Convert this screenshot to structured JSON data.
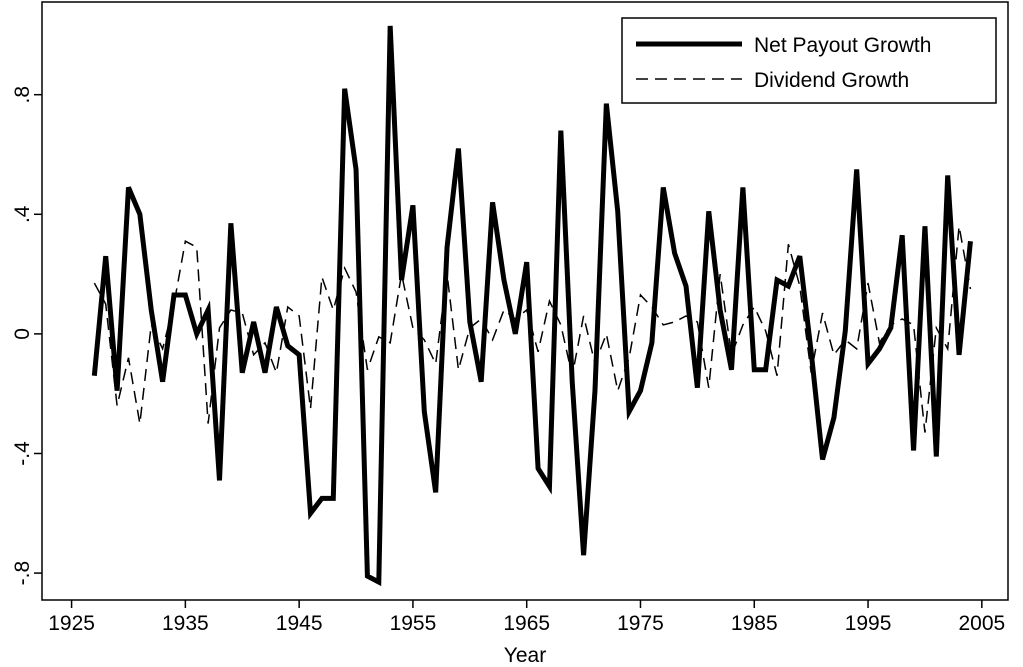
{
  "chart_data": {
    "type": "line",
    "xlabel": "Year",
    "x": [
      1927,
      1928,
      1929,
      1930,
      1931,
      1932,
      1933,
      1934,
      1935,
      1936,
      1937,
      1938,
      1939,
      1940,
      1941,
      1942,
      1943,
      1944,
      1945,
      1946,
      1947,
      1948,
      1949,
      1950,
      1951,
      1952,
      1953,
      1954,
      1955,
      1956,
      1957,
      1958,
      1959,
      1960,
      1961,
      1962,
      1963,
      1964,
      1965,
      1966,
      1967,
      1968,
      1969,
      1970,
      1971,
      1972,
      1973,
      1974,
      1975,
      1976,
      1977,
      1978,
      1979,
      1980,
      1981,
      1982,
      1983,
      1984,
      1985,
      1986,
      1987,
      1988,
      1989,
      1990,
      1991,
      1992,
      1993,
      1994,
      1995,
      1996,
      1997,
      1998,
      1999,
      2000,
      2001,
      2002,
      2003,
      2004
    ],
    "series": [
      {
        "name": "Net Payout Growth",
        "color": "#000000",
        "line_style": "solid",
        "line_width": 5,
        "values": [
          -0.14,
          0.26,
          -0.19,
          0.49,
          0.4,
          0.08,
          -0.16,
          0.13,
          0.13,
          0,
          0.08,
          -0.49,
          0.37,
          -0.13,
          0.04,
          -0.13,
          0.09,
          -0.04,
          -0.07,
          -0.6,
          -0.55,
          -0.55,
          0.82,
          0.55,
          -0.81,
          -0.83,
          1.03,
          0.18,
          0.43,
          -0.26,
          -0.53,
          0.29,
          0.62,
          0.04,
          -0.16,
          0.44,
          0.18,
          0,
          0.24,
          -0.45,
          -0.51,
          0.68,
          -0.16,
          -0.74,
          -0.19,
          0.77,
          0.41,
          -0.26,
          -0.19,
          -0.03,
          0.49,
          0.27,
          0.16,
          -0.18,
          0.41,
          0.08,
          -0.12,
          0.49,
          -0.12,
          -0.12,
          0.18,
          0.16,
          0.26,
          -0.06,
          -0.42,
          -0.28,
          0.01,
          0.55,
          -0.1,
          -0.05,
          0.02,
          0.33,
          -0.39,
          0.36,
          -0.41,
          0.53,
          -0.07,
          0.31
        ]
      },
      {
        "name": "Dividend Growth",
        "color": "#000000",
        "line_style": "dashed",
        "line_width": 1.5,
        "values": [
          0.17,
          0.1,
          -0.24,
          -0.08,
          -0.3,
          0.03,
          -0.05,
          0.1,
          0.31,
          0.29,
          -0.3,
          0.02,
          0.08,
          0.07,
          -0.07,
          -0.03,
          -0.13,
          0.09,
          0.06,
          -0.25,
          0.19,
          0.08,
          0.22,
          0.14,
          -0.12,
          -0.01,
          -0.03,
          0.2,
          0.02,
          -0.02,
          -0.1,
          0.2,
          -0.12,
          0.02,
          0.05,
          -0.02,
          0.08,
          0.05,
          0.08,
          -0.06,
          0.11,
          0.03,
          -0.14,
          0.06,
          -0.1,
          0.0,
          -0.19,
          -0.08,
          0.13,
          0.09,
          0.03,
          0.04,
          0.06,
          0.04,
          -0.18,
          0.2,
          -0.07,
          0.03,
          0.09,
          0.01,
          -0.14,
          0.3,
          0.16,
          -0.13,
          0.07,
          -0.07,
          -0.02,
          -0.05,
          0.17,
          -0.03,
          0.03,
          0.05,
          0.03,
          -0.33,
          0.02,
          -0.05,
          0.36,
          0.15
        ]
      }
    ],
    "xlim": [
      1922.4,
      2007.3
    ],
    "xticks": [
      1925,
      1935,
      1945,
      1955,
      1965,
      1975,
      1985,
      1995,
      2005
    ],
    "ylim": [
      -0.89,
      1.11
    ],
    "yticks": [
      {
        "value": -0.8,
        "label": "-.8"
      },
      {
        "value": -0.4,
        "label": "-.4"
      },
      0,
      {
        "value": 0.4,
        "label": ".4"
      },
      {
        "value": 0.8,
        "label": ".8"
      }
    ],
    "grid": false,
    "legend": "upper right"
  }
}
